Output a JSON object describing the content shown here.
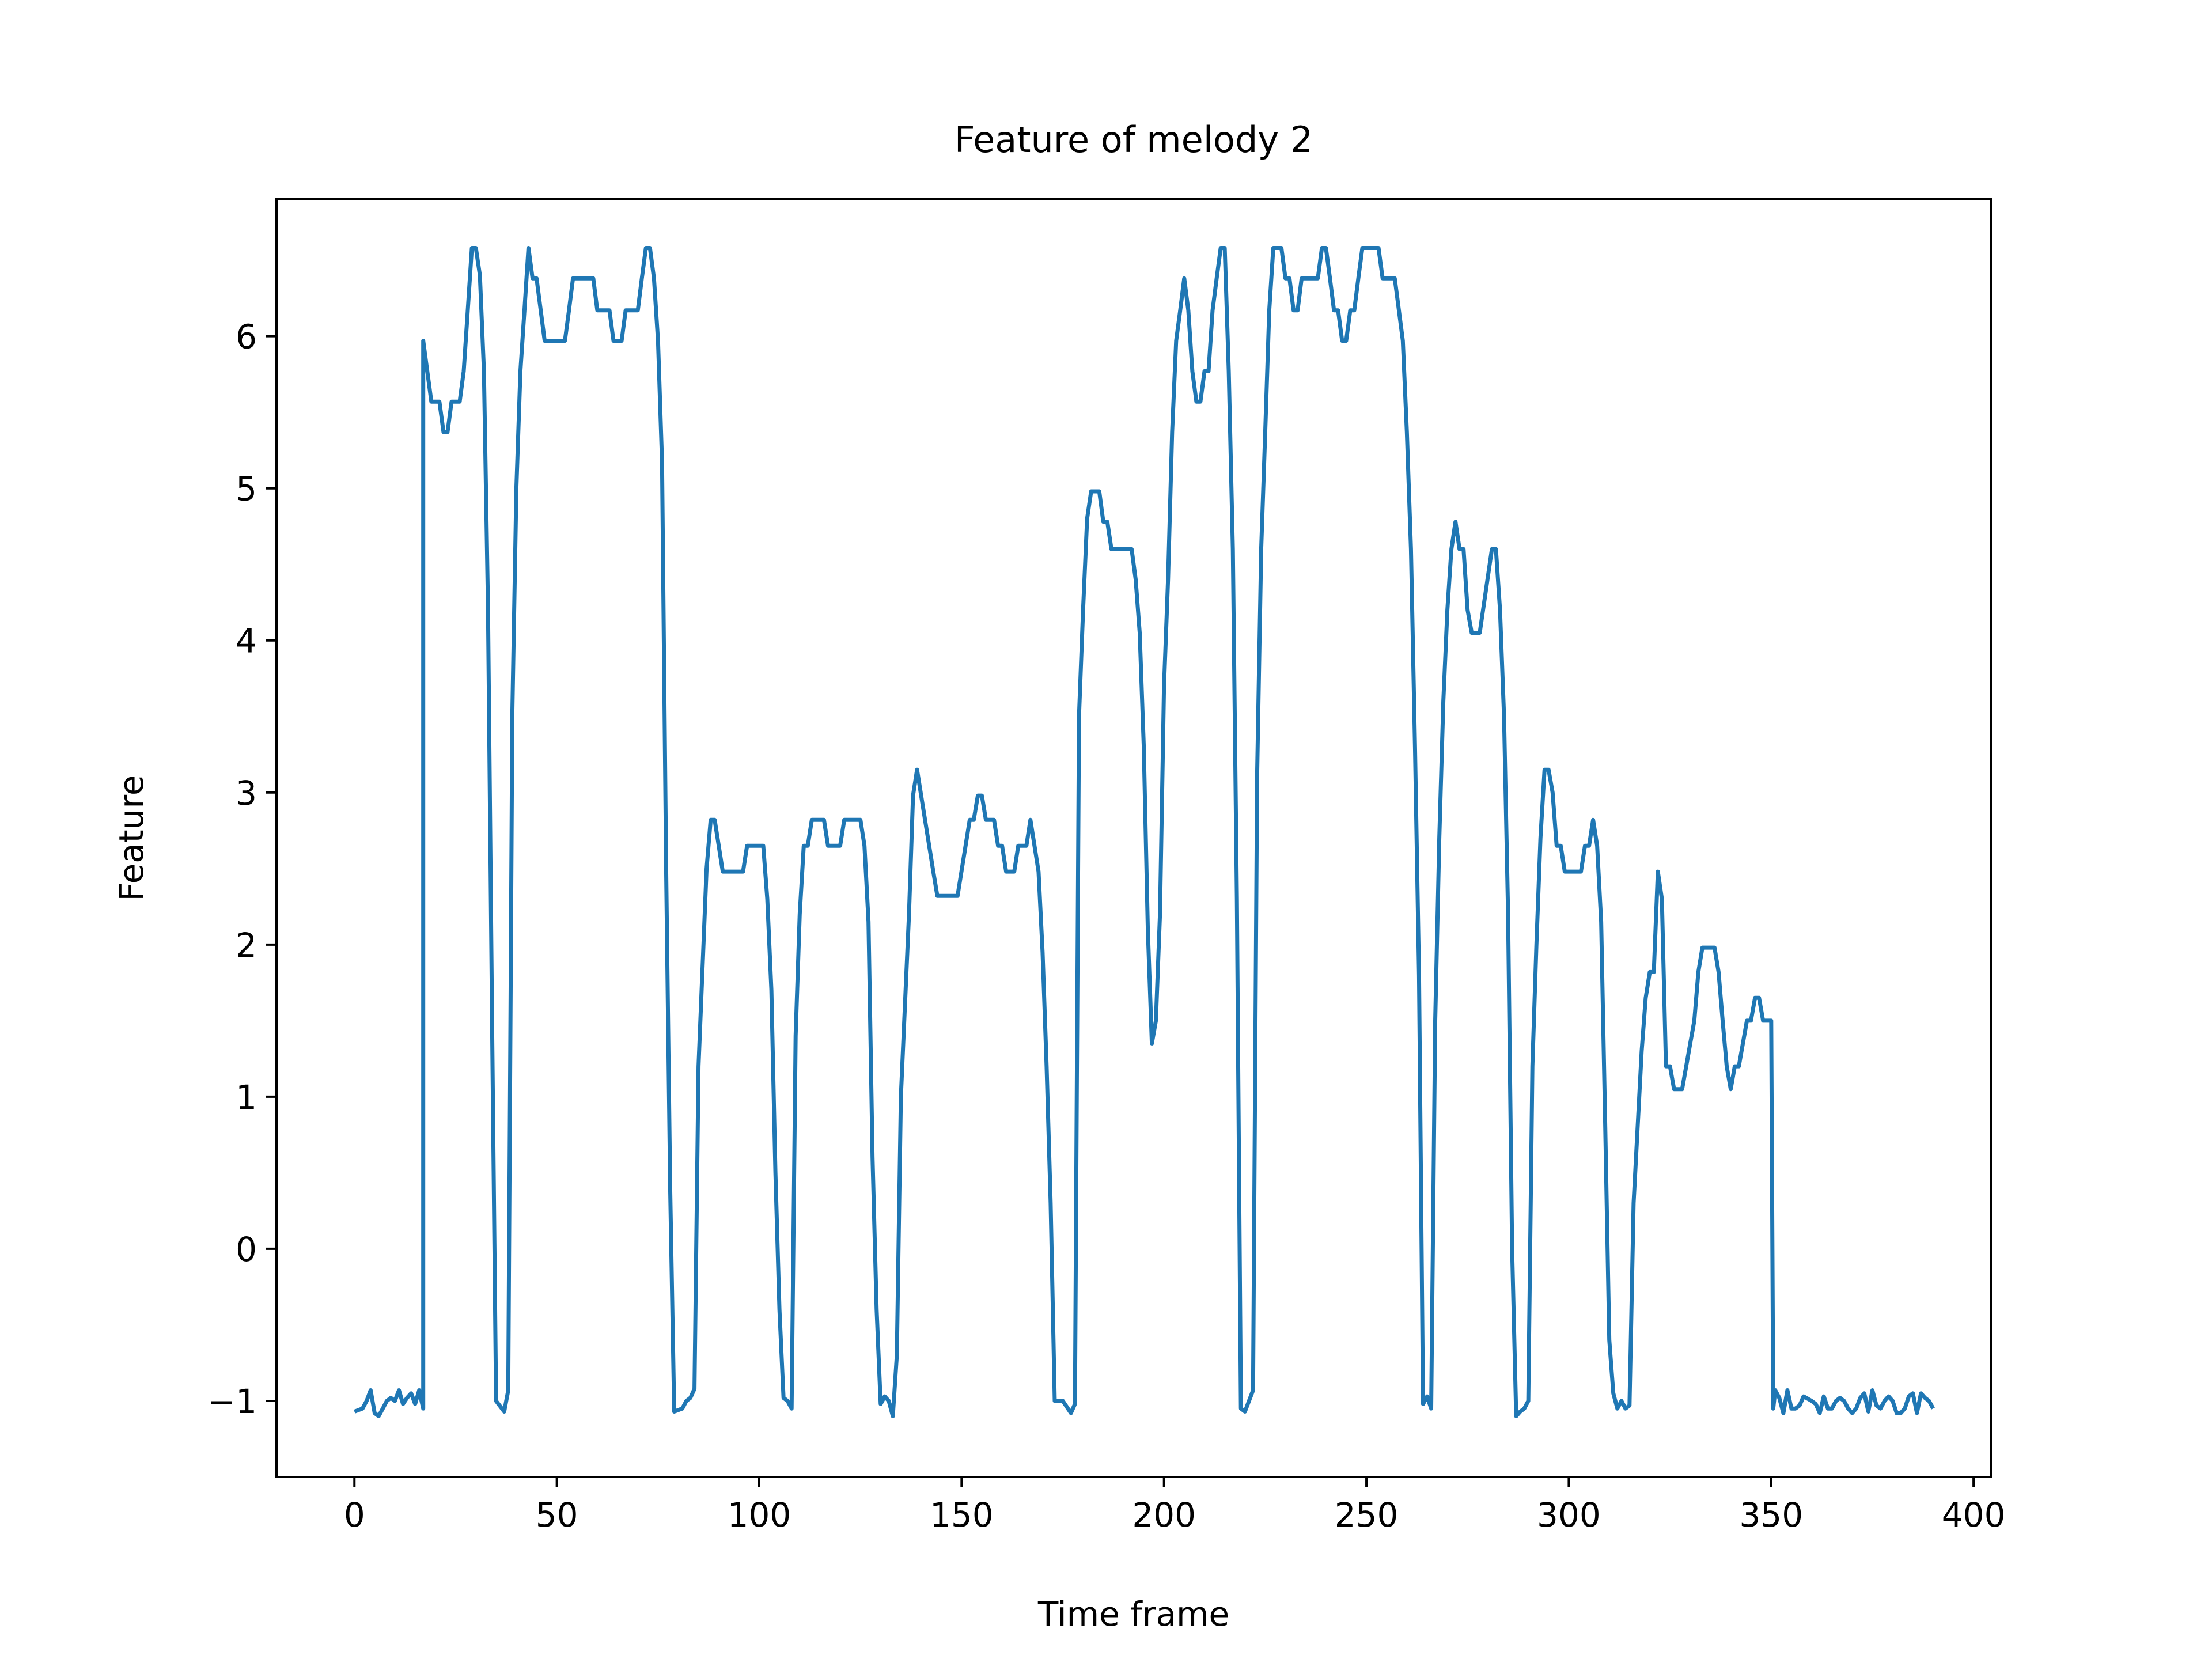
{
  "chart_data": {
    "type": "line",
    "title": "Feature of melody 2",
    "xlabel": "Time frame",
    "ylabel": "Feature",
    "xlim": [
      -19.25,
      404.25
    ],
    "ylim": [
      -1.5,
      6.9
    ],
    "xticks": [
      0,
      50,
      100,
      150,
      200,
      250,
      300,
      350,
      400
    ],
    "xtick_labels": [
      "0",
      "50",
      "100",
      "150",
      "200",
      "250",
      "300",
      "350",
      "400"
    ],
    "yticks": [
      -1,
      0,
      1,
      2,
      3,
      4,
      5,
      6
    ],
    "ytick_labels": [
      "−1",
      "0",
      "1",
      "2",
      "3",
      "4",
      "5",
      "6"
    ],
    "grid": false,
    "series": [
      {
        "color": "#1f77b4",
        "points": [
          [
            0,
            -1.07
          ],
          [
            2,
            -1.05
          ],
          [
            3,
            -1.0
          ],
          [
            4,
            -0.93
          ],
          [
            5,
            -1.08
          ],
          [
            6,
            -1.1
          ],
          [
            7,
            -1.05
          ],
          [
            8,
            -1.0
          ],
          [
            9,
            -0.98
          ],
          [
            10,
            -1.0
          ],
          [
            11,
            -0.93
          ],
          [
            12,
            -1.02
          ],
          [
            13,
            -0.98
          ],
          [
            14,
            -0.95
          ],
          [
            15,
            -1.02
          ],
          [
            16,
            -0.93
          ],
          [
            17,
            -1.05
          ],
          [
            17,
            5.97
          ],
          [
            19,
            5.57
          ],
          [
            21,
            5.57
          ],
          [
            22,
            5.37
          ],
          [
            23,
            5.37
          ],
          [
            24,
            5.57
          ],
          [
            26,
            5.57
          ],
          [
            27,
            5.77
          ],
          [
            28,
            6.17
          ],
          [
            29,
            6.58
          ],
          [
            30,
            6.58
          ],
          [
            31,
            6.4
          ],
          [
            32,
            5.77
          ],
          [
            33,
            4.2
          ],
          [
            34,
            1.5
          ],
          [
            35,
            -1.0
          ],
          [
            37,
            -1.07
          ],
          [
            38,
            -0.93
          ],
          [
            39,
            3.5
          ],
          [
            40,
            5.0
          ],
          [
            41,
            5.77
          ],
          [
            42,
            6.17
          ],
          [
            43,
            6.58
          ],
          [
            44,
            6.38
          ],
          [
            45,
            6.38
          ],
          [
            47,
            5.97
          ],
          [
            52,
            5.97
          ],
          [
            53,
            6.17
          ],
          [
            54,
            6.38
          ],
          [
            59,
            6.38
          ],
          [
            60,
            6.17
          ],
          [
            63,
            6.17
          ],
          [
            64,
            5.97
          ],
          [
            66,
            5.97
          ],
          [
            67,
            6.17
          ],
          [
            70,
            6.17
          ],
          [
            71,
            6.38
          ],
          [
            72,
            6.58
          ],
          [
            73,
            6.58
          ],
          [
            74,
            6.38
          ],
          [
            75,
            5.97
          ],
          [
            76,
            5.17
          ],
          [
            77,
            2.5
          ],
          [
            78,
            0.4
          ],
          [
            79,
            -1.07
          ],
          [
            81,
            -1.05
          ],
          [
            82,
            -1.0
          ],
          [
            83,
            -0.98
          ],
          [
            84,
            -0.92
          ],
          [
            85,
            1.2
          ],
          [
            87,
            2.5
          ],
          [
            88,
            2.82
          ],
          [
            89,
            2.82
          ],
          [
            91,
            2.48
          ],
          [
            96,
            2.48
          ],
          [
            97,
            2.65
          ],
          [
            101,
            2.65
          ],
          [
            102,
            2.3
          ],
          [
            103,
            1.7
          ],
          [
            104,
            0.5
          ],
          [
            105,
            -0.4
          ],
          [
            106,
            -0.98
          ],
          [
            107,
            -1.0
          ],
          [
            108,
            -1.05
          ],
          [
            109,
            1.4
          ],
          [
            110,
            2.2
          ],
          [
            111,
            2.65
          ],
          [
            112,
            2.65
          ],
          [
            113,
            2.82
          ],
          [
            116,
            2.82
          ],
          [
            117,
            2.65
          ],
          [
            120,
            2.65
          ],
          [
            121,
            2.82
          ],
          [
            125,
            2.82
          ],
          [
            126,
            2.65
          ],
          [
            127,
            2.15
          ],
          [
            128,
            0.6
          ],
          [
            129,
            -0.4
          ],
          [
            130,
            -1.02
          ],
          [
            131,
            -0.97
          ],
          [
            132,
            -1.0
          ],
          [
            133,
            -1.1
          ],
          [
            134,
            -0.7
          ],
          [
            135,
            1.0
          ],
          [
            137,
            2.2
          ],
          [
            138,
            2.98
          ],
          [
            139,
            3.15
          ],
          [
            140,
            2.98
          ],
          [
            143,
            2.48
          ],
          [
            144,
            2.32
          ],
          [
            149,
            2.32
          ],
          [
            152,
            2.82
          ],
          [
            153,
            2.82
          ],
          [
            154,
            2.98
          ],
          [
            155,
            2.98
          ],
          [
            156,
            2.82
          ],
          [
            158,
            2.82
          ],
          [
            159,
            2.65
          ],
          [
            160,
            2.65
          ],
          [
            161,
            2.48
          ],
          [
            163,
            2.48
          ],
          [
            164,
            2.65
          ],
          [
            166,
            2.65
          ],
          [
            167,
            2.82
          ],
          [
            169,
            2.48
          ],
          [
            170,
            1.95
          ],
          [
            171,
            1.2
          ],
          [
            172,
            0.3
          ],
          [
            173,
            -1.0
          ],
          [
            175,
            -1.0
          ],
          [
            177,
            -1.08
          ],
          [
            178,
            -1.02
          ],
          [
            179,
            3.5
          ],
          [
            180,
            4.2
          ],
          [
            181,
            4.8
          ],
          [
            182,
            4.98
          ],
          [
            184,
            4.98
          ],
          [
            185,
            4.78
          ],
          [
            186,
            4.78
          ],
          [
            187,
            4.6
          ],
          [
            192,
            4.6
          ],
          [
            193,
            4.4
          ],
          [
            194,
            4.05
          ],
          [
            195,
            3.3
          ],
          [
            196,
            2.1
          ],
          [
            197,
            1.35
          ],
          [
            198,
            1.5
          ],
          [
            199,
            2.2
          ],
          [
            200,
            3.7
          ],
          [
            201,
            4.4
          ],
          [
            202,
            5.37
          ],
          [
            203,
            5.97
          ],
          [
            204,
            6.17
          ],
          [
            205,
            6.38
          ],
          [
            206,
            6.17
          ],
          [
            207,
            5.77
          ],
          [
            208,
            5.57
          ],
          [
            209,
            5.57
          ],
          [
            210,
            5.77
          ],
          [
            211,
            5.77
          ],
          [
            212,
            6.17
          ],
          [
            213,
            6.38
          ],
          [
            214,
            6.58
          ],
          [
            215,
            6.58
          ],
          [
            216,
            5.77
          ],
          [
            217,
            4.6
          ],
          [
            218,
            2.3
          ],
          [
            219,
            -1.05
          ],
          [
            220,
            -1.07
          ],
          [
            222,
            -0.93
          ],
          [
            223,
            3.1
          ],
          [
            224,
            4.6
          ],
          [
            225,
            5.37
          ],
          [
            226,
            6.17
          ],
          [
            227,
            6.58
          ],
          [
            229,
            6.58
          ],
          [
            230,
            6.38
          ],
          [
            231,
            6.38
          ],
          [
            232,
            6.17
          ],
          [
            233,
            6.17
          ],
          [
            234,
            6.38
          ],
          [
            238,
            6.38
          ],
          [
            239,
            6.58
          ],
          [
            240,
            6.58
          ],
          [
            241,
            6.38
          ],
          [
            242,
            6.17
          ],
          [
            243,
            6.17
          ],
          [
            244,
            5.97
          ],
          [
            245,
            5.97
          ],
          [
            246,
            6.17
          ],
          [
            247,
            6.17
          ],
          [
            248,
            6.38
          ],
          [
            249,
            6.58
          ],
          [
            253,
            6.58
          ],
          [
            254,
            6.38
          ],
          [
            257,
            6.38
          ],
          [
            259,
            5.97
          ],
          [
            260,
            5.37
          ],
          [
            261,
            4.6
          ],
          [
            262,
            3.3
          ],
          [
            263,
            1.8
          ],
          [
            264,
            -1.02
          ],
          [
            265,
            -0.97
          ],
          [
            266,
            -1.05
          ],
          [
            267,
            1.5
          ],
          [
            268,
            2.7
          ],
          [
            269,
            3.6
          ],
          [
            270,
            4.2
          ],
          [
            271,
            4.6
          ],
          [
            272,
            4.78
          ],
          [
            273,
            4.6
          ],
          [
            274,
            4.6
          ],
          [
            275,
            4.2
          ],
          [
            276,
            4.05
          ],
          [
            278,
            4.05
          ],
          [
            281,
            4.6
          ],
          [
            282,
            4.6
          ],
          [
            283,
            4.2
          ],
          [
            284,
            3.5
          ],
          [
            285,
            2.2
          ],
          [
            286,
            0.0
          ],
          [
            287,
            -1.1
          ],
          [
            288,
            -1.07
          ],
          [
            289,
            -1.05
          ],
          [
            290,
            -1.0
          ],
          [
            291,
            1.2
          ],
          [
            292,
            2.0
          ],
          [
            293,
            2.7
          ],
          [
            294,
            3.15
          ],
          [
            295,
            3.15
          ],
          [
            296,
            3.0
          ],
          [
            297,
            2.65
          ],
          [
            298,
            2.65
          ],
          [
            299,
            2.48
          ],
          [
            303,
            2.48
          ],
          [
            304,
            2.65
          ],
          [
            305,
            2.65
          ],
          [
            306,
            2.82
          ],
          [
            307,
            2.65
          ],
          [
            308,
            2.15
          ],
          [
            309,
            0.8
          ],
          [
            310,
            -0.6
          ],
          [
            311,
            -0.95
          ],
          [
            312,
            -1.05
          ],
          [
            313,
            -1.0
          ],
          [
            314,
            -1.05
          ],
          [
            315,
            -1.03
          ],
          [
            316,
            0.3
          ],
          [
            317,
            0.8
          ],
          [
            318,
            1.3
          ],
          [
            319,
            1.65
          ],
          [
            320,
            1.82
          ],
          [
            321,
            1.82
          ],
          [
            322,
            2.48
          ],
          [
            323,
            2.3
          ],
          [
            324,
            1.2
          ],
          [
            325,
            1.2
          ],
          [
            326,
            1.05
          ],
          [
            328,
            1.05
          ],
          [
            329,
            1.2
          ],
          [
            330,
            1.35
          ],
          [
            331,
            1.5
          ],
          [
            332,
            1.82
          ],
          [
            333,
            1.98
          ],
          [
            336,
            1.98
          ],
          [
            337,
            1.82
          ],
          [
            338,
            1.5
          ],
          [
            339,
            1.2
          ],
          [
            340,
            1.05
          ],
          [
            341,
            1.2
          ],
          [
            342,
            1.2
          ],
          [
            343,
            1.35
          ],
          [
            344,
            1.5
          ],
          [
            345,
            1.5
          ],
          [
            346,
            1.65
          ],
          [
            347,
            1.65
          ],
          [
            348,
            1.5
          ],
          [
            350,
            1.5
          ],
          [
            350.5,
            -1.05
          ],
          [
            351,
            -0.93
          ],
          [
            352,
            -0.98
          ],
          [
            353,
            -1.08
          ],
          [
            354,
            -0.93
          ],
          [
            355,
            -1.05
          ],
          [
            356,
            -1.05
          ],
          [
            357,
            -1.03
          ],
          [
            358,
            -0.97
          ],
          [
            360,
            -1.0
          ],
          [
            361,
            -1.02
          ],
          [
            362,
            -1.08
          ],
          [
            363,
            -0.97
          ],
          [
            364,
            -1.05
          ],
          [
            365,
            -1.05
          ],
          [
            366,
            -1.0
          ],
          [
            367,
            -0.98
          ],
          [
            368,
            -1.0
          ],
          [
            369,
            -1.05
          ],
          [
            370,
            -1.08
          ],
          [
            371,
            -1.05
          ],
          [
            372,
            -0.98
          ],
          [
            373,
            -0.95
          ],
          [
            374,
            -1.07
          ],
          [
            375,
            -0.93
          ],
          [
            376,
            -1.03
          ],
          [
            377,
            -1.05
          ],
          [
            378,
            -1.0
          ],
          [
            379,
            -0.97
          ],
          [
            380,
            -1.0
          ],
          [
            381,
            -1.08
          ],
          [
            382,
            -1.08
          ],
          [
            383,
            -1.05
          ],
          [
            384,
            -0.97
          ],
          [
            385,
            -0.95
          ],
          [
            386,
            -1.08
          ],
          [
            387,
            -0.95
          ],
          [
            388,
            -0.98
          ],
          [
            389,
            -1.0
          ],
          [
            390,
            -1.05
          ]
        ]
      }
    ]
  }
}
